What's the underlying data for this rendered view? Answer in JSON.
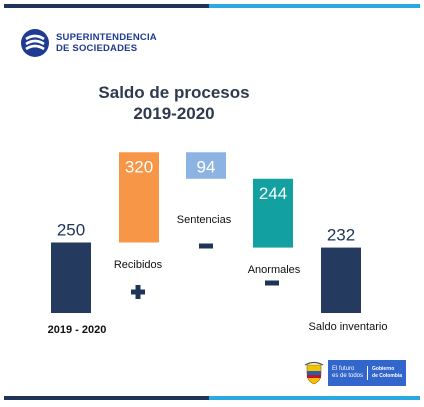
{
  "brand": {
    "line1": "SUPERINTENDENCIA",
    "line2": "DE SOCIEDADES"
  },
  "footer": {
    "motto_line1": "El futuro",
    "motto_line2": "es de todos",
    "gov_line1": "Gobierno",
    "gov_line2": "de Colombia"
  },
  "colors": {
    "navy": "#243a5e",
    "orange": "#f79646",
    "lightblue": "#8db3e2",
    "teal": "#12a0a0",
    "accent_blue": "#29a9e0"
  },
  "chart_data": {
    "type": "bar",
    "subtype": "waterfall",
    "title": "Saldo de procesos",
    "subtitle": "2019-2020",
    "categories": [
      "2019 - 2020",
      "Recibidos",
      "Sentencias",
      "Anormales",
      "Saldo inventario"
    ],
    "values": [
      250,
      320,
      94,
      244,
      232
    ],
    "operators": [
      "",
      "+",
      "-",
      "-",
      ""
    ],
    "colors": [
      "#243a5e",
      "#f79646",
      "#8db3e2",
      "#12a0a0",
      "#243a5e"
    ]
  }
}
